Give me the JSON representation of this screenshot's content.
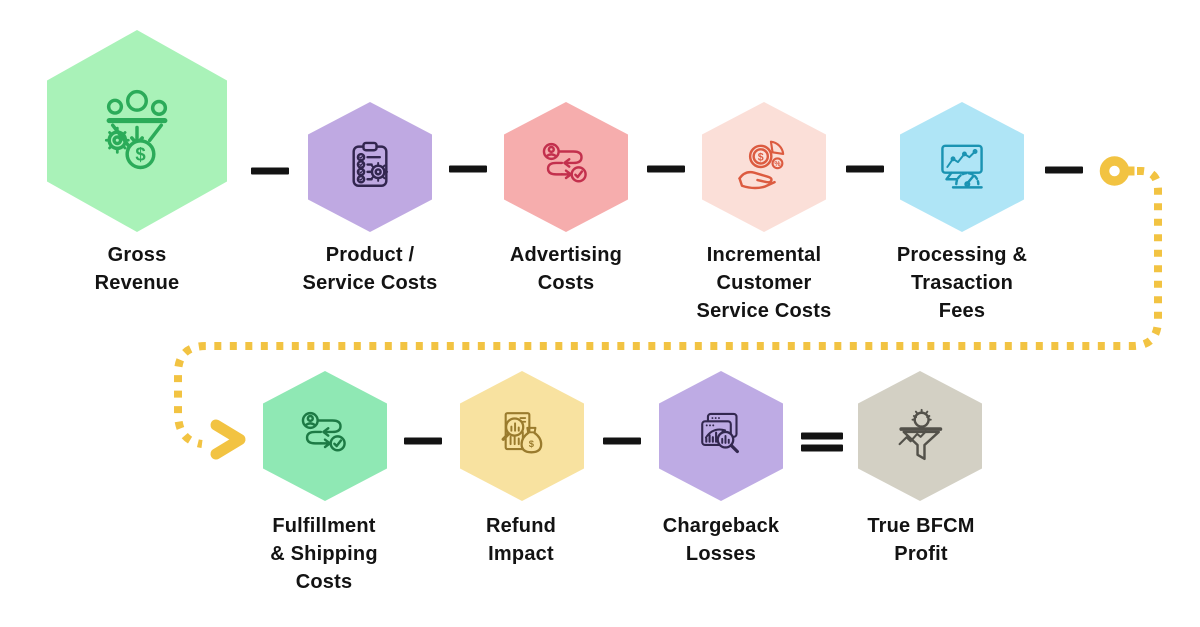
{
  "connector": {
    "color": "#F2C342",
    "type": "dotted-arrow-loop"
  },
  "operator_color": "#131313",
  "label_color": "#131313",
  "nodes": [
    {
      "id": "gross-revenue",
      "label": "Gross\nRevenue",
      "icon": "funnel-money-icon",
      "hex_fill": "#A9F2B8",
      "icon_color": "#2BAB59",
      "size": "large"
    },
    {
      "id": "product-service-costs",
      "label": "Product /\nService Costs",
      "icon": "clipboard-checklist-icon",
      "hex_fill": "#BFA9E2",
      "icon_color": "#32264F",
      "size": "small"
    },
    {
      "id": "advertising-costs",
      "label": "Advertising\nCosts",
      "icon": "workflow-arrows-icon",
      "hex_fill": "#F6ADAD",
      "icon_color": "#C3304D",
      "size": "small"
    },
    {
      "id": "incremental-customer-service-costs",
      "label": "Incremental\nCustomer\nService Costs",
      "icon": "hand-coin-icon",
      "hex_fill": "#FBDFD8",
      "icon_color": "#DC5B40",
      "size": "small"
    },
    {
      "id": "processing-transaction-fees",
      "label": "Processing &\nTrasaction\nFees",
      "icon": "monitor-gauge-icon",
      "hex_fill": "#AFE5F6",
      "icon_color": "#1A93B2",
      "size": "small"
    },
    {
      "id": "fulfillment-shipping-costs",
      "label": "Fulfillment\n& Shipping\nCosts",
      "icon": "workflow-arrows-icon",
      "hex_fill": "#8FE8B4",
      "icon_color": "#1D7A45",
      "size": "small"
    },
    {
      "id": "refund-impact",
      "label": "Refund\nImpact",
      "icon": "report-moneybag-icon",
      "hex_fill": "#F8E2A0",
      "icon_color": "#9A7B2D",
      "size": "small"
    },
    {
      "id": "chargeback-losses",
      "label": "Chargeback\nLosses",
      "icon": "window-chart-magnifier-icon",
      "hex_fill": "#BEABE4",
      "icon_color": "#33284F",
      "size": "small"
    },
    {
      "id": "true-bfcm-profit",
      "label": "True BFCM\nProfit",
      "icon": "funnel-gear-icon",
      "hex_fill": "#D3D0C4",
      "icon_color": "#53514A",
      "size": "small"
    }
  ],
  "operators": [
    {
      "id": "op-1",
      "type": "minus"
    },
    {
      "id": "op-2",
      "type": "minus"
    },
    {
      "id": "op-3",
      "type": "minus"
    },
    {
      "id": "op-4",
      "type": "minus"
    },
    {
      "id": "op-5",
      "type": "minus"
    },
    {
      "id": "op-6",
      "type": "minus"
    },
    {
      "id": "op-7",
      "type": "minus"
    },
    {
      "id": "op-8",
      "type": "equals"
    }
  ]
}
